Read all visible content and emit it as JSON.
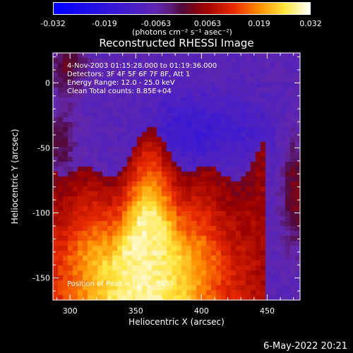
{
  "chart_data": {
    "type": "heatmap",
    "title": "Reconstructed RHESSI Image",
    "xlabel": "Heliocentric X (arcsec)",
    "ylabel": "Heliocentric Y (arcsec)",
    "xlim": [
      287,
      475
    ],
    "ylim": [
      -167,
      23
    ],
    "x_ticks": [
      300,
      350,
      400,
      450
    ],
    "y_ticks": [
      0,
      -50,
      -100,
      -150
    ],
    "colorbar": {
      "range": [
        -0.032,
        0.032
      ],
      "tick_labels": [
        "-0.032",
        "-0.019",
        "-0.0063",
        "0.0063",
        "0.019",
        "0.032"
      ],
      "units": "(photons cm⁻² s⁻¹ asec⁻²)",
      "colormap": "blue-purple-red-yellow-white"
    },
    "annotations": {
      "time_range": "4-Nov-2003 01:15:28.000 to 01:19:36.000",
      "detectors": "Detectors: 3F 4F 5F 6F 7F 8F, Att 1",
      "energy": "Energy Range: 12.0 - 25.0 keV",
      "method": "Clean     Total counts: 8.85E+04",
      "peak": "Position of Peak = [368, -165]"
    },
    "peak_position": [
      368,
      -165
    ]
  },
  "footer": {
    "date": "6-May-2022 20:21"
  },
  "colors": {
    "background": "#000000",
    "foreground": "#ffffff",
    "min": "#0000ff",
    "mid": "#6a2cb8",
    "max": "#ffffff"
  }
}
